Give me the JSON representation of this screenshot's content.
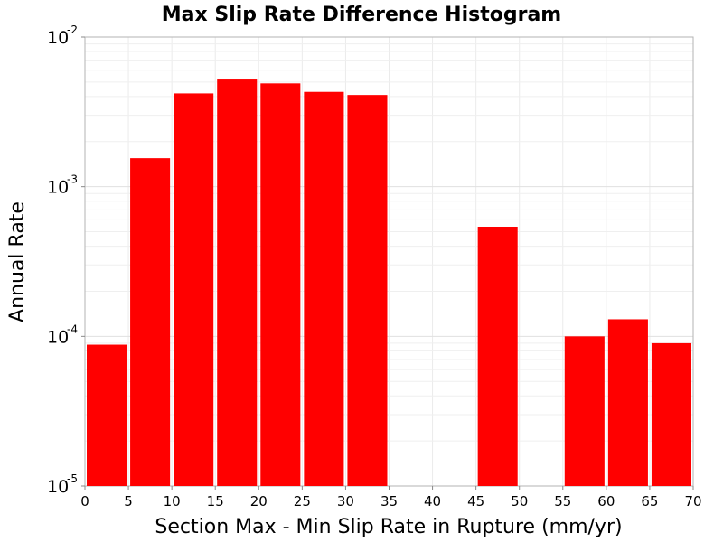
{
  "chart_data": {
    "type": "bar",
    "title": "Max Slip Rate Difference Histogram",
    "xlabel": "Section Max - Min Slip Rate in Rupture (mm/yr)",
    "ylabel": "Annual Rate",
    "y_scale": "log",
    "xlim": [
      0,
      70
    ],
    "ylim": [
      1e-05,
      0.01
    ],
    "x_ticks": [
      "0",
      "5",
      "10",
      "15",
      "20",
      "25",
      "30",
      "35",
      "40",
      "45",
      "50",
      "55",
      "60",
      "65",
      "70"
    ],
    "y_ticks": [
      {
        "base": "10",
        "exp": "-5",
        "value": 1e-05
      },
      {
        "base": "10",
        "exp": "-4",
        "value": 0.0001
      },
      {
        "base": "10",
        "exp": "-3",
        "value": 0.001
      },
      {
        "base": "10",
        "exp": "-2",
        "value": 0.01
      }
    ],
    "grid": true,
    "bar_color": "#ff0000",
    "bin_width": 5,
    "bins": [
      {
        "x_start": 0,
        "x_end": 5,
        "value": 8.8e-05
      },
      {
        "x_start": 5,
        "x_end": 10,
        "value": 0.00155
      },
      {
        "x_start": 10,
        "x_end": 15,
        "value": 0.0042
      },
      {
        "x_start": 15,
        "x_end": 20,
        "value": 0.0052
      },
      {
        "x_start": 20,
        "x_end": 25,
        "value": 0.0049
      },
      {
        "x_start": 25,
        "x_end": 30,
        "value": 0.0043
      },
      {
        "x_start": 30,
        "x_end": 35,
        "value": 0.0041
      },
      {
        "x_start": 45,
        "x_end": 50,
        "value": 0.00054
      },
      {
        "x_start": 55,
        "x_end": 60,
        "value": 0.0001
      },
      {
        "x_start": 60,
        "x_end": 65,
        "value": 0.00013
      },
      {
        "x_start": 65,
        "x_end": 70,
        "value": 9e-05
      }
    ]
  }
}
